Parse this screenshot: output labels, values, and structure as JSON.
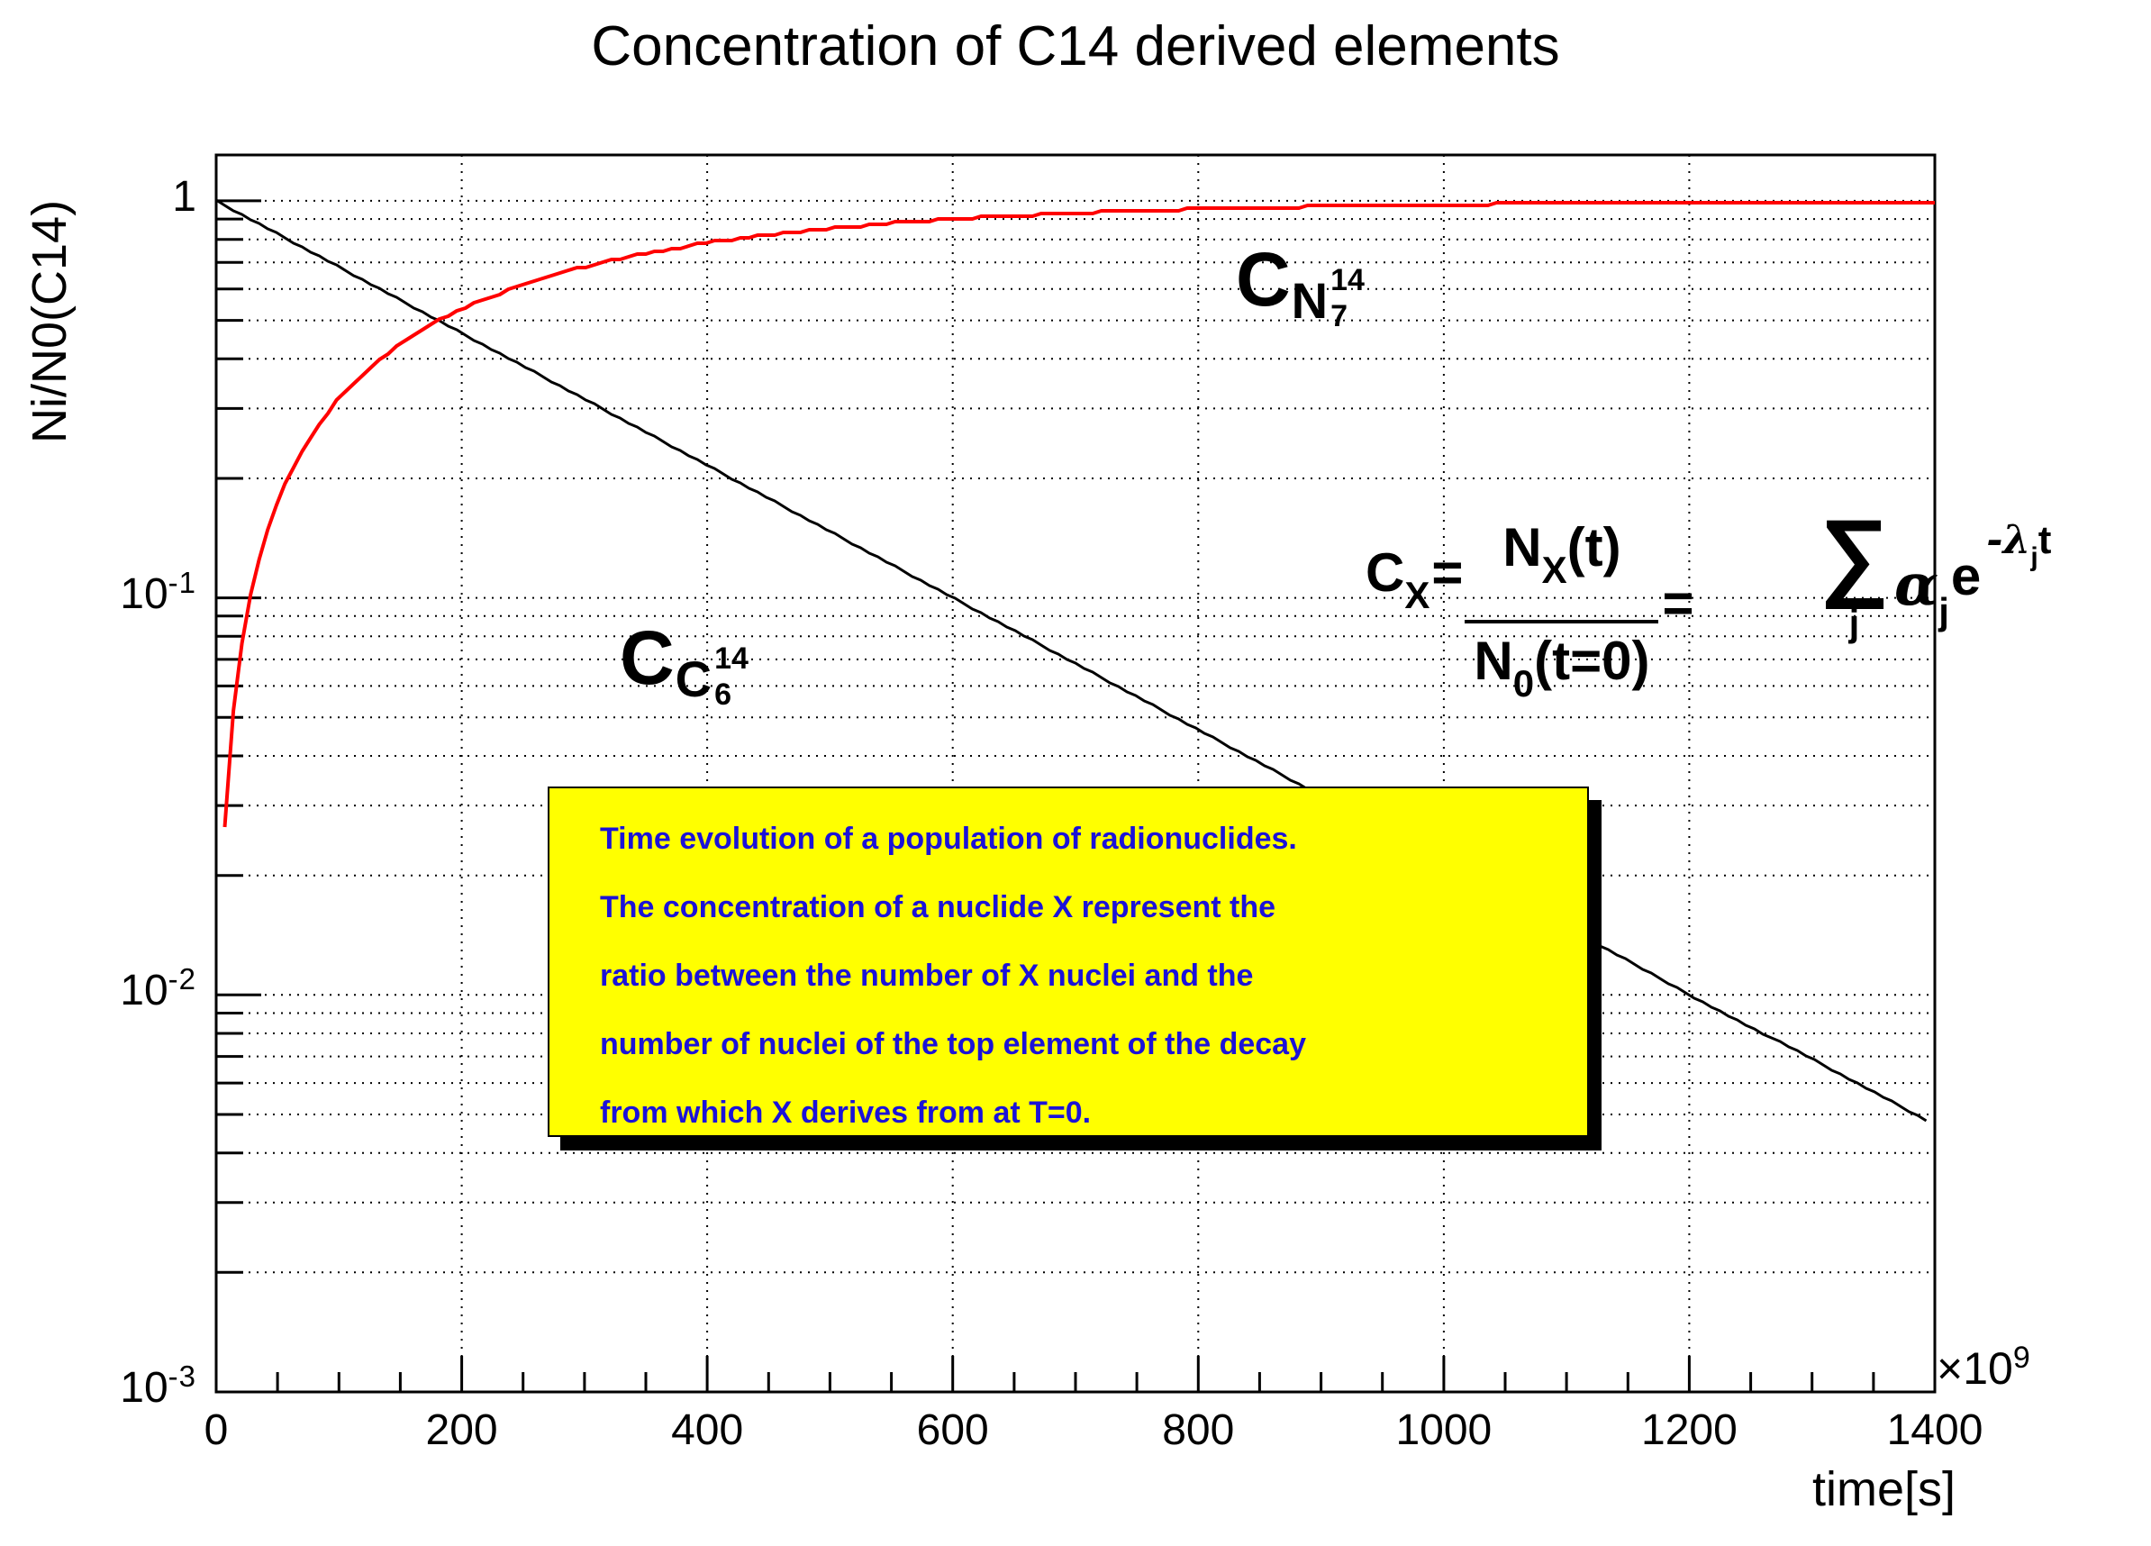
{
  "title": "Concentration of C14 derived elements",
  "axes": {
    "y_title": "Ni/N0(C14)",
    "x_title": "time[s]",
    "x_exponent_base": "×10",
    "x_exponent_power": "9",
    "x_tick_labels": [
      "0",
      "200",
      "400",
      "600",
      "800",
      "1000",
      "1200",
      "1400"
    ],
    "y_tick_labels": [
      {
        "text": "1",
        "value": 1
      },
      {
        "base": "10",
        "exp": "-1",
        "value": 0.1
      },
      {
        "base": "10",
        "exp": "-2",
        "value": 0.01
      },
      {
        "base": "10",
        "exp": "-3",
        "value": 0.001
      }
    ]
  },
  "annotations": {
    "n14_label": {
      "main": "C",
      "element": "N",
      "mass": "14",
      "charge": "7"
    },
    "c14_label": {
      "main": "C",
      "element": "C",
      "mass": "14",
      "charge": "6"
    },
    "formula": {
      "lhs_main": "C",
      "lhs_sub": "X",
      "eq1": "=",
      "num_main": "N",
      "num_sub": "X",
      "num_rest": "(t)",
      "den_main": "N",
      "den_sub": "0",
      "den_rest": "(t=0)",
      "eq2": "=",
      "sum": "∑",
      "sum_sub": "j",
      "alpha": "α",
      "alpha_sub": "j",
      "exp_base": "e",
      "exp_neg_lambda": "-λ",
      "exp_sub": "j",
      "exp_t": "t"
    }
  },
  "note_box": {
    "bg": "#ffff00",
    "border": "#000000",
    "text_color": "#1b12d8",
    "lines": [
      "Time evolution of a population of radionuclides.",
      "The concentration of a nuclide X represent the",
      "ratio between the number of X nuclei and the",
      "number of nuclei of the top element of the decay",
      "from which X derives from at T=0."
    ]
  },
  "chart_data": {
    "type": "line",
    "title": "Concentration of C14 derived elements",
    "xlabel": "time[s] (×10^9)",
    "ylabel": "Ni/N0(C14)",
    "xlim": [
      0,
      1400
    ],
    "ylim": [
      0.001,
      1.305
    ],
    "ylog": true,
    "grid": true,
    "x_major_tick_step": 200,
    "x_minor_tick_step": 50,
    "t": [
      0,
      7,
      10,
      15,
      20,
      25,
      30,
      40,
      50,
      60,
      80,
      100,
      125,
      150,
      175,
      200,
      250,
      300,
      350,
      400,
      450,
      500,
      550,
      600,
      650,
      700,
      750,
      800,
      850,
      900,
      950,
      1000,
      1050,
      1100,
      1150,
      1200,
      1250,
      1300,
      1350,
      1400
    ],
    "series": [
      {
        "name": "C14 concentration (C 6-14, black)",
        "color": "#000000",
        "t_start": 0,
        "t_end": 1393,
        "values": [
          1,
          0.9735,
          0.9624,
          0.9441,
          0.9262,
          0.9086,
          0.8913,
          0.8578,
          0.8255,
          0.7945,
          0.7358,
          0.6815,
          0.6193,
          0.5626,
          0.5112,
          0.4645,
          0.3835,
          0.3166,
          0.2613,
          0.2158,
          0.1781,
          0.147,
          0.1214,
          0.1002,
          0.0827,
          0.0683,
          0.0564,
          0.0465,
          0.0384,
          0.0317,
          0.0262,
          0.0216,
          0.0178,
          0.0147,
          0.0122,
          0.01,
          0.0083,
          0.0069,
          0.0057,
          0.0047
        ]
      },
      {
        "name": "N14 concentration (N 7-14, red)",
        "color": "#ff0000",
        "t_start": 7,
        "t_end": 1400,
        "values": [
          0,
          0.0265,
          0.0376,
          0.0559,
          0.0738,
          0.0914,
          0.1087,
          0.1422,
          0.1745,
          0.2055,
          0.2642,
          0.3185,
          0.3807,
          0.4374,
          0.4888,
          0.5355,
          0.6165,
          0.6834,
          0.7387,
          0.7842,
          0.8219,
          0.853,
          0.8786,
          0.8998,
          0.9173,
          0.9317,
          0.9436,
          0.9535,
          0.9616,
          0.9683,
          0.9738,
          0.9784,
          0.9822,
          0.9853,
          0.9878,
          0.99,
          0.9917,
          0.9931,
          0.9944,
          0.9953
        ]
      }
    ]
  }
}
